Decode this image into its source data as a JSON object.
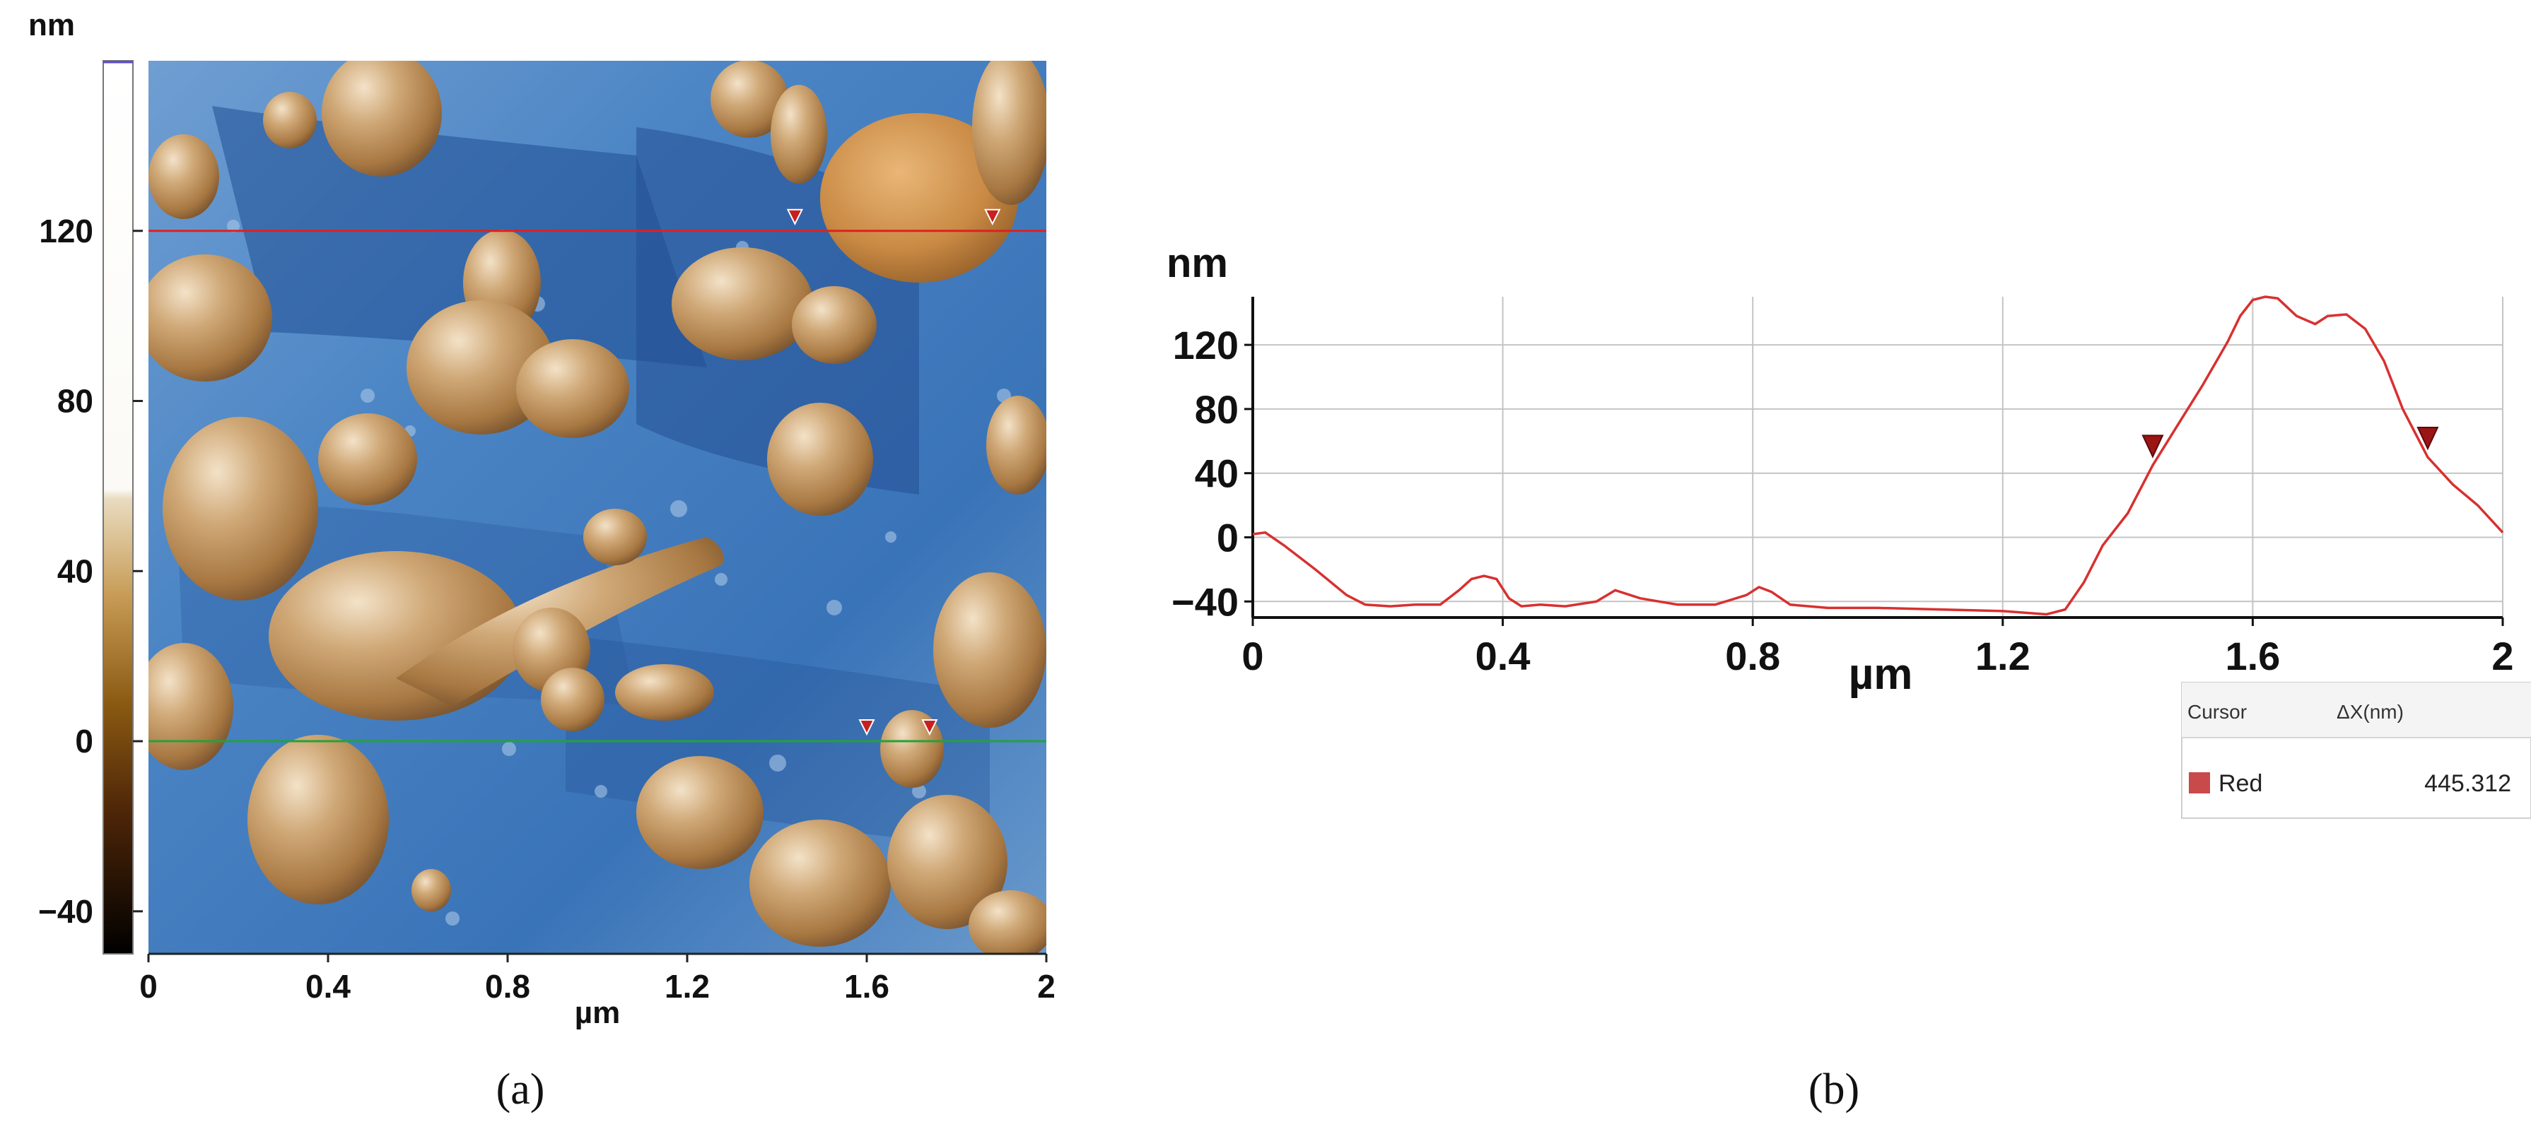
{
  "chart_data": [
    {
      "type": "heatmap",
      "panel_label": "(a)",
      "xlabel": "µm",
      "colorbar_unit": "nm",
      "x_range": [
        0,
        2
      ],
      "y_range": [
        -50,
        160
      ],
      "x_ticks": [
        {
          "value": 0,
          "label": "0"
        },
        {
          "value": 0.4,
          "label": "0.4"
        },
        {
          "value": 0.8,
          "label": "0.8"
        },
        {
          "value": 1.2,
          "label": "1.2"
        },
        {
          "value": 1.6,
          "label": "1.6"
        },
        {
          "value": 2,
          "label": "2"
        }
      ],
      "colorbar_ticks": [
        {
          "value": 120,
          "label": "120"
        },
        {
          "value": 80,
          "label": "80"
        },
        {
          "value": 40,
          "label": "40"
        },
        {
          "value": 0,
          "label": "0"
        },
        {
          "value": -40,
          "label": "−40"
        }
      ],
      "profile_lines": [
        {
          "color": "#e02020",
          "y_value": 120,
          "markers_x": [
            1.44,
            1.88
          ]
        },
        {
          "color": "#22a33a",
          "y_value": 0,
          "markers_x": [
            1.6,
            1.74
          ]
        }
      ],
      "colors": {
        "substrate": "#3f79bd",
        "substrate_dark": "#1f4f93",
        "particle": "#b98a57",
        "particle_highlight": "#ecd7bb",
        "particle_shadow": "#6d4a2a"
      }
    },
    {
      "type": "line",
      "panel_label": "(b)",
      "xlabel": "µm",
      "ylabel": "nm",
      "xlim": [
        0,
        2
      ],
      "ylim": [
        -50,
        150
      ],
      "grid": true,
      "x_ticks": [
        {
          "value": 0,
          "label": "0"
        },
        {
          "value": 0.4,
          "label": "0.4"
        },
        {
          "value": 0.8,
          "label": "0.8"
        },
        {
          "value": 1.2,
          "label": "1.2"
        },
        {
          "value": 1.6,
          "label": "1.6"
        },
        {
          "value": 2,
          "label": "2"
        }
      ],
      "y_ticks": [
        {
          "value": 120,
          "label": "120"
        },
        {
          "value": 80,
          "label": "80"
        },
        {
          "value": 40,
          "label": "40"
        },
        {
          "value": 0,
          "label": "0"
        },
        {
          "value": -40,
          "label": "−40"
        }
      ],
      "series": [
        {
          "color": "#d83030",
          "x": [
            0,
            0.02,
            0.05,
            0.1,
            0.15,
            0.18,
            0.22,
            0.26,
            0.3,
            0.33,
            0.35,
            0.37,
            0.39,
            0.41,
            0.43,
            0.46,
            0.5,
            0.55,
            0.58,
            0.62,
            0.68,
            0.74,
            0.79,
            0.81,
            0.83,
            0.86,
            0.92,
            1.0,
            1.1,
            1.2,
            1.27,
            1.3,
            1.33,
            1.36,
            1.4,
            1.44,
            1.48,
            1.52,
            1.56,
            1.58,
            1.6,
            1.62,
            1.64,
            1.67,
            1.7,
            1.72,
            1.75,
            1.78,
            1.81,
            1.84,
            1.88,
            1.92,
            1.96,
            2.0
          ],
          "y": [
            2,
            3,
            -5,
            -20,
            -36,
            -42,
            -43,
            -42,
            -42,
            -33,
            -26,
            -24,
            -26,
            -38,
            -43,
            -42,
            -43,
            -40,
            -33,
            -38,
            -42,
            -42,
            -36,
            -31,
            -34,
            -42,
            -44,
            -44,
            -45,
            -46,
            -48,
            -45,
            -28,
            -5,
            15,
            45,
            70,
            95,
            122,
            138,
            148,
            150,
            149,
            138,
            133,
            138,
            139,
            130,
            110,
            80,
            50,
            33,
            20,
            3
          ]
        }
      ],
      "markers_x": [
        1.44,
        1.88
      ],
      "cursor_table": {
        "headers": [
          "Cursor",
          "ΔX(nm)"
        ],
        "rows": [
          {
            "name": "Red",
            "value": "445.312",
            "swatch": "#c94a4a"
          }
        ]
      }
    }
  ]
}
